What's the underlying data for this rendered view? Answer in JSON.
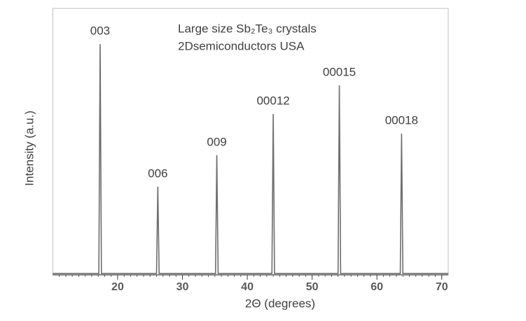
{
  "chart_data": {
    "type": "line",
    "title": "Large size Sb₂Te₃ crystals",
    "subtitle": "2Dsemiconductors USA",
    "x_label": "2Θ (degrees)",
    "y_label": "Intensity (a.u.)",
    "x": [
      10,
      17.1,
      17.3,
      17.5,
      26.0,
      26.2,
      26.4,
      35.1,
      35.3,
      35.5,
      43.8,
      44.0,
      44.2,
      54.0,
      54.2,
      54.4,
      63.6,
      63.8,
      64.0,
      71
    ],
    "values": [
      0.5,
      0.5,
      86.6,
      0.5,
      0.5,
      33.1,
      0.5,
      0.5,
      44.9,
      0.5,
      0.5,
      60.4,
      0.5,
      0.5,
      71.1,
      0.5,
      0.5,
      53.0,
      0.5,
      0.5
    ],
    "point_labels": [
      null,
      null,
      "003",
      null,
      null,
      "006",
      null,
      null,
      "009",
      null,
      null,
      "00012",
      null,
      null,
      "00015",
      null,
      null,
      "00018",
      null,
      null
    ],
    "color": "#6e6e6e",
    "xlim": [
      10,
      71
    ],
    "xticks": [
      20,
      30,
      40,
      50,
      60,
      70
    ],
    "ylim": [
      0,
      100
    ]
  }
}
